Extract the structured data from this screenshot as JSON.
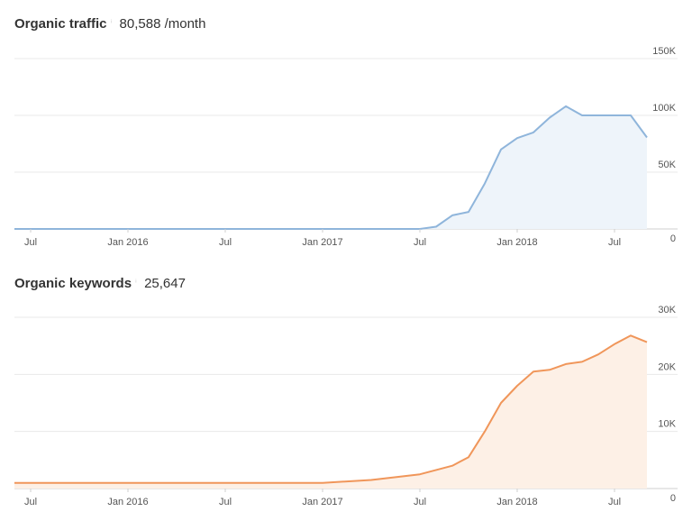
{
  "colors": {
    "traffic_line": "#8fb5db",
    "traffic_fill": "#eef4fa",
    "keywords_line": "#f0965a",
    "keywords_fill": "#fdf0e6",
    "grid": "#e8e8e8"
  },
  "traffic": {
    "label": "Organic traffic",
    "value": "80,588 /month"
  },
  "keywords": {
    "label": "Organic keywords",
    "value": "25,647"
  },
  "chart_data": [
    {
      "type": "area",
      "title": "Organic traffic",
      "x_tick_labels": [
        "Jul",
        "Jan 2016",
        "Jul",
        "Jan 2017",
        "Jul",
        "Jan 2018",
        "Jul"
      ],
      "y_tick_labels": [
        "0",
        "50K",
        "100K",
        "150K"
      ],
      "y_ticks": [
        0,
        50000,
        100000,
        150000
      ],
      "ylim": [
        0,
        150000
      ],
      "xlim": [
        "2015-06",
        "2018-09"
      ],
      "x": [
        "2015-06",
        "2015-07",
        "2016-01",
        "2016-07",
        "2017-01",
        "2017-06",
        "2017-07",
        "2017-08",
        "2017-09",
        "2017-10",
        "2017-11",
        "2017-12",
        "2018-01",
        "2018-02",
        "2018-03",
        "2018-04",
        "2018-05",
        "2018-06",
        "2018-07",
        "2018-08",
        "2018-09"
      ],
      "values": [
        0,
        0,
        0,
        0,
        0,
        0,
        0,
        2000,
        12000,
        15000,
        40000,
        70000,
        80000,
        85000,
        98000,
        108000,
        100000,
        100000,
        100000,
        100000,
        80588
      ],
      "grid": true
    },
    {
      "type": "area",
      "title": "Organic keywords",
      "x_tick_labels": [
        "Jul",
        "Jan 2016",
        "Jul",
        "Jan 2017",
        "Jul",
        "Jan 2018",
        "Jul"
      ],
      "y_tick_labels": [
        "0",
        "10K",
        "20K",
        "30K"
      ],
      "y_ticks": [
        0,
        10000,
        20000,
        30000
      ],
      "ylim": [
        0,
        30000
      ],
      "xlim": [
        "2015-06",
        "2018-09"
      ],
      "x": [
        "2015-06",
        "2016-07",
        "2017-01",
        "2017-04",
        "2017-07",
        "2017-09",
        "2017-10",
        "2017-11",
        "2017-12",
        "2018-01",
        "2018-02",
        "2018-03",
        "2018-04",
        "2018-05",
        "2018-06",
        "2018-07",
        "2018-08",
        "2018-09"
      ],
      "values": [
        1000,
        1000,
        1000,
        1500,
        2500,
        4000,
        5500,
        10000,
        15000,
        18000,
        20500,
        20800,
        21800,
        22200,
        23500,
        25300,
        26800,
        25647
      ],
      "grid": true
    }
  ]
}
